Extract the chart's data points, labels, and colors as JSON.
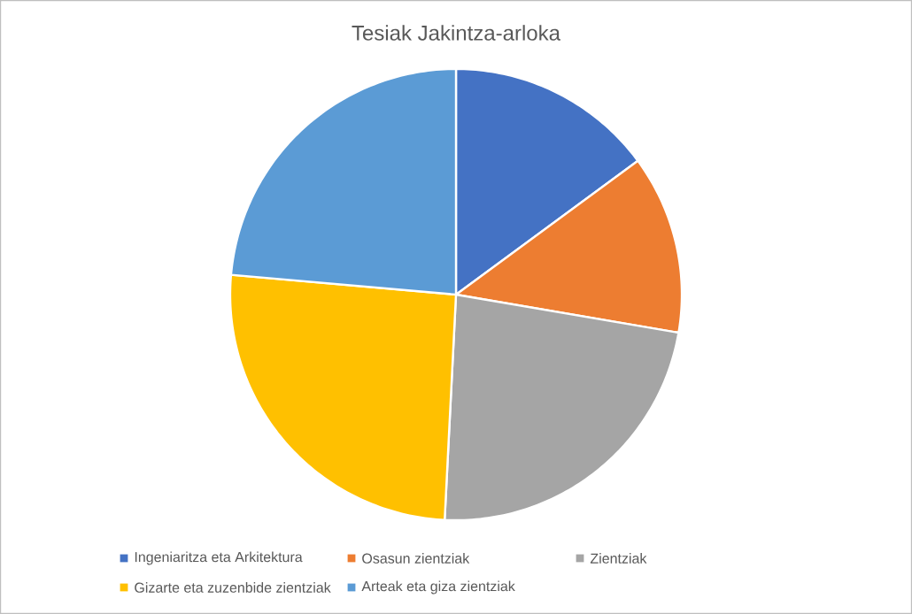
{
  "chart_data": {
    "type": "pie",
    "title": "Tesiak Jakintza-arloka",
    "categories": [
      "Ingeniaritza eta Arkitektura",
      "Osasun zientziak",
      "Zientziak",
      "Gizarte eta zuzenbide zientziak",
      "Arteak eta giza zientziak"
    ],
    "values": [
      14.9,
      12.8,
      23.1,
      25.6,
      23.6
    ],
    "colors": [
      "#4472c4",
      "#ed7d31",
      "#a5a5a5",
      "#ffc000",
      "#5b9bd5"
    ],
    "legend": "bottom"
  }
}
